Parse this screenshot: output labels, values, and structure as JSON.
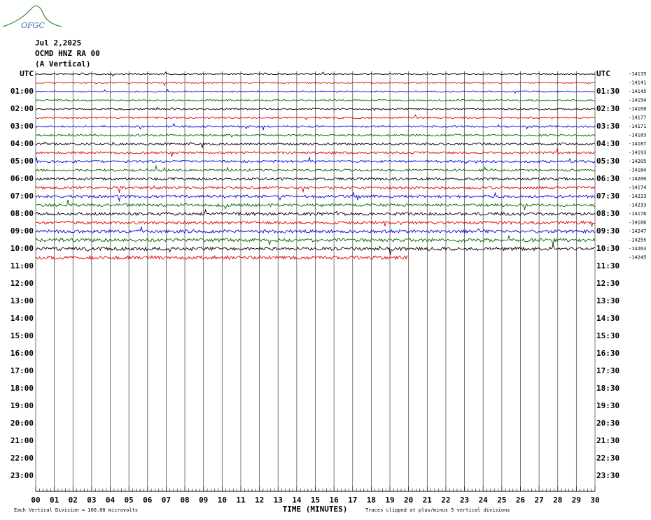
{
  "chart_data": {
    "type": "helicorder",
    "logo": "OFGC",
    "date": "Jul 2,2025",
    "station": "OCMD HNZ RA 00",
    "component": "(A Vertical)",
    "left_labels": [
      "UTC",
      "01:00",
      "02:00",
      "03:00",
      "04:00",
      "05:00",
      "06:00",
      "07:00",
      "08:00",
      "09:00",
      "10:00",
      "11:00",
      "12:00",
      "13:00",
      "14:00",
      "15:00",
      "16:00",
      "17:00",
      "18:00",
      "19:00",
      "20:00",
      "21:00",
      "22:00",
      "23:00"
    ],
    "right_labels": [
      "UTC",
      "01:30",
      "02:30",
      "03:30",
      "04:30",
      "05:30",
      "06:30",
      "07:30",
      "08:30",
      "09:30",
      "10:30",
      "11:30",
      "12:30",
      "13:30",
      "14:30",
      "15:30",
      "16:30",
      "17:30",
      "18:30",
      "19:30",
      "20:30",
      "21:30",
      "22:30",
      "23:30"
    ],
    "offsets": [
      -14135,
      -14141,
      -14145,
      -14154,
      -14160,
      -14177,
      -14171,
      -14183,
      -14187,
      -14193,
      -14205,
      -14184,
      -14200,
      -14174,
      -14233,
      -14233,
      -14176,
      -14186,
      -14247,
      -14255,
      -14263,
      -14245
    ],
    "trace_colors": [
      "#000000",
      "#e00000",
      "#0000e0",
      "#006400"
    ],
    "last_trace_end_minute": 20,
    "xlim": [
      0,
      30
    ],
    "xticks": [
      {
        "value": 0,
        "label": "00"
      },
      {
        "value": 1,
        "label": "01"
      },
      {
        "value": 2,
        "label": "02"
      },
      {
        "value": 3,
        "label": "03"
      },
      {
        "value": 4,
        "label": "04"
      },
      {
        "value": 5,
        "label": "05"
      },
      {
        "value": 6,
        "label": "06"
      },
      {
        "value": 7,
        "label": "07"
      },
      {
        "value": 8,
        "label": "08"
      },
      {
        "value": 9,
        "label": "09"
      },
      10,
      11,
      12,
      13,
      14,
      15,
      16,
      17,
      18,
      19,
      20,
      21,
      22,
      23,
      24,
      25,
      26,
      27,
      28,
      29,
      30
    ],
    "x_label": "TIME (MINUTES)",
    "footer_left": "Each Vertical Division = 100.00 microvolts",
    "footer_right": "Traces clipped at plus/minus 5 vertical divisions"
  }
}
